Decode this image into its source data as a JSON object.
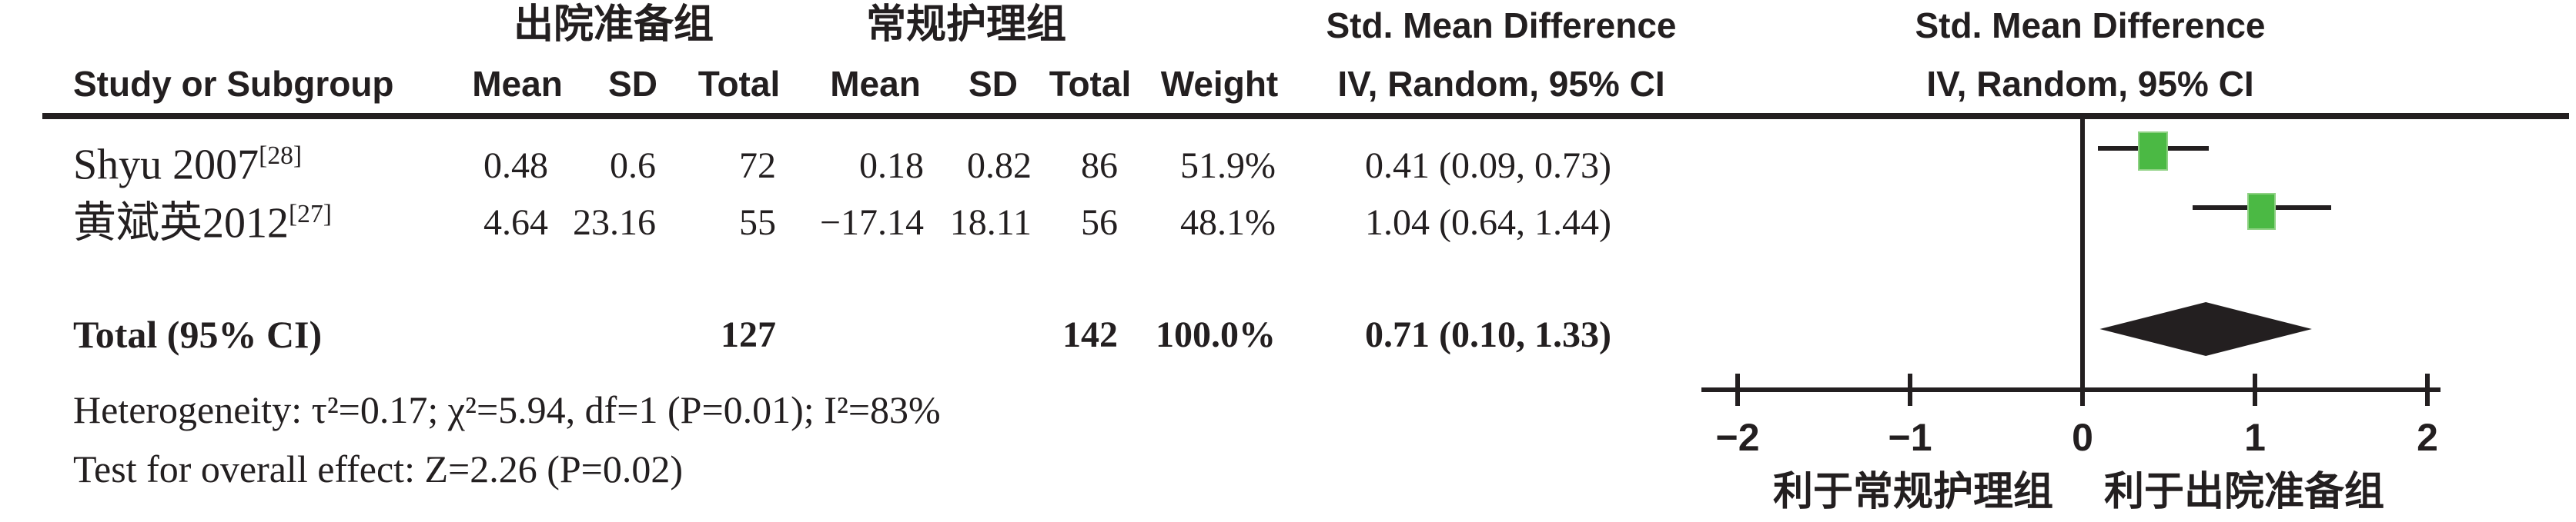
{
  "header": {
    "group1_label": "出院准备组",
    "group2_label": "常规护理组",
    "study_col": "Study or Subgroup",
    "mean": "Mean",
    "sd": "SD",
    "total": "Total",
    "weight": "Weight",
    "smd_title": "Std. Mean Difference",
    "smd_subtitle": "IV, Random, 95% CI"
  },
  "rows": [
    {
      "study": "Shyu 2007",
      "ref": "[28]",
      "g1_mean": "0.48",
      "g1_sd": "0.6",
      "g1_total": "72",
      "g2_mean": "0.18",
      "g2_sd": "0.82",
      "g2_total": "86",
      "weight": "51.9%",
      "smd_ci": "0.41 (0.09, 0.73)"
    },
    {
      "study": "黄斌英2012",
      "ref": "[27]",
      "g1_mean": "4.64",
      "g1_sd": "23.16",
      "g1_total": "55",
      "g2_mean": "−17.14",
      "g2_sd": "18.11",
      "g2_total": "56",
      "weight": "48.1%",
      "smd_ci": "1.04 (0.64, 1.44)"
    }
  ],
  "total_row": {
    "label": "Total (95% CI)",
    "g1_total": "127",
    "g2_total": "142",
    "weight": "100.0%",
    "smd_ci": "0.71 (0.10, 1.33)"
  },
  "footnotes": {
    "heterogeneity": "Heterogeneity: τ²=0.17; χ²=5.94, df=1 (P=0.01); I²=83%",
    "overall_effect": "Test for overall effect: Z=2.26 (P=0.02)"
  },
  "chart_data": {
    "type": "forest",
    "effect_measure": "Std. Mean Difference",
    "model": "IV, Random, 95% CI",
    "axis": {
      "ticks": [
        -2,
        -1,
        0,
        1,
        2
      ],
      "tick_labels": [
        "−2",
        "−1",
        "0",
        "1",
        "2"
      ],
      "zero_line": 0
    },
    "favors_left": "利于常规护理组",
    "favors_right": "利于出院准备组",
    "studies": [
      {
        "name": "Shyu 2007",
        "smd": 0.41,
        "ci_low": 0.09,
        "ci_high": 0.73,
        "weight_pct": 51.9
      },
      {
        "name": "黄斌英2012",
        "smd": 1.04,
        "ci_low": 0.64,
        "ci_high": 1.44,
        "weight_pct": 48.1
      }
    ],
    "total": {
      "smd": 0.71,
      "ci_low": 0.1,
      "ci_high": 1.33
    },
    "marker_color": "#4bb944",
    "diamond_color": "#231f20"
  }
}
